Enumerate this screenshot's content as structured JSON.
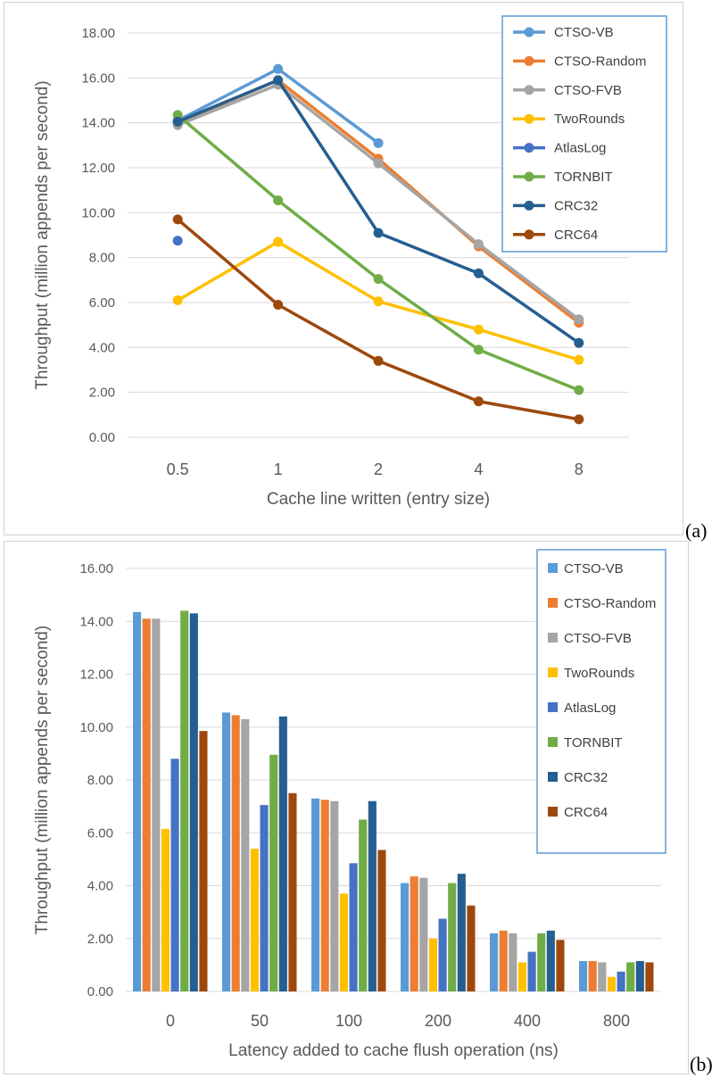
{
  "chart_data": [
    {
      "panel_label": "(a)",
      "type": "line",
      "title": "",
      "xlabel": "Cache line written (entry size)",
      "ylabel": "Throughput (million appends per second)",
      "categories": [
        "0.5",
        "1",
        "2",
        "4",
        "8"
      ],
      "ylim": [
        0,
        18
      ],
      "yticks": [
        "0.00",
        "2.00",
        "4.00",
        "6.00",
        "8.00",
        "10.00",
        "12.00",
        "14.00",
        "16.00",
        "18.00"
      ],
      "grid": true,
      "legend_position": "top-right",
      "series": [
        {
          "name": "CTSO-VB",
          "color": "#5B9BD5",
          "values": [
            14.1,
            16.4,
            13.1,
            null,
            null
          ]
        },
        {
          "name": "CTSO-Random",
          "color": "#ED7D31",
          "values": [
            14.0,
            15.9,
            12.4,
            8.5,
            5.1
          ]
        },
        {
          "name": "CTSO-FVB",
          "color": "#A5A5A5",
          "values": [
            13.9,
            15.7,
            12.2,
            8.6,
            5.25
          ]
        },
        {
          "name": "TwoRounds",
          "color": "#FFC000",
          "values": [
            6.1,
            8.7,
            6.05,
            4.8,
            3.45
          ]
        },
        {
          "name": "AtlasLog",
          "color": "#4472C4",
          "values": [
            8.75,
            null,
            null,
            null,
            null
          ]
        },
        {
          "name": "TORNBIT",
          "color": "#70AD47",
          "values": [
            14.35,
            10.55,
            7.05,
            3.9,
            2.1
          ]
        },
        {
          "name": "CRC32",
          "color": "#255E91",
          "values": [
            14.05,
            15.9,
            9.1,
            7.3,
            4.2
          ]
        },
        {
          "name": "CRC64",
          "color": "#9E480E",
          "values": [
            9.7,
            5.9,
            3.4,
            1.6,
            0.8
          ]
        }
      ]
    },
    {
      "panel_label": "(b)",
      "type": "bar",
      "title": "",
      "xlabel": "Latency added to cache flush operation (ns)",
      "ylabel": "Throughput (million appends per second)",
      "categories": [
        "0",
        "50",
        "100",
        "200",
        "400",
        "800"
      ],
      "ylim": [
        0,
        16
      ],
      "yticks": [
        "0.00",
        "2.00",
        "4.00",
        "6.00",
        "8.00",
        "10.00",
        "12.00",
        "14.00",
        "16.00"
      ],
      "grid": true,
      "legend_position": "top-right",
      "series": [
        {
          "name": "CTSO-VB",
          "color": "#5B9BD5",
          "values": [
            14.35,
            10.55,
            7.3,
            4.1,
            2.2,
            1.15
          ]
        },
        {
          "name": "CTSO-Random",
          "color": "#ED7D31",
          "values": [
            14.1,
            10.45,
            7.25,
            4.35,
            2.3,
            1.15
          ]
        },
        {
          "name": "CTSO-FVB",
          "color": "#A5A5A5",
          "values": [
            14.1,
            10.3,
            7.2,
            4.3,
            2.2,
            1.1
          ]
        },
        {
          "name": "TwoRounds",
          "color": "#FFC000",
          "values": [
            6.15,
            5.4,
            3.7,
            2.0,
            1.1,
            0.55
          ]
        },
        {
          "name": "AtlasLog",
          "color": "#4472C4",
          "values": [
            8.8,
            7.05,
            4.85,
            2.75,
            1.5,
            0.75
          ]
        },
        {
          "name": "TORNBIT",
          "color": "#70AD47",
          "values": [
            14.4,
            8.95,
            6.5,
            4.1,
            2.2,
            1.1
          ]
        },
        {
          "name": "CRC32",
          "color": "#255E91",
          "values": [
            14.3,
            10.4,
            7.2,
            4.45,
            2.3,
            1.15
          ]
        },
        {
          "name": "CRC64",
          "color": "#9E480E",
          "values": [
            9.85,
            7.5,
            5.35,
            3.25,
            1.95,
            1.1
          ]
        }
      ]
    }
  ]
}
